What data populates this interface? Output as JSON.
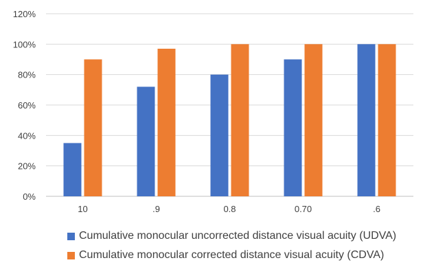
{
  "chart_data": {
    "type": "bar",
    "categories": [
      "10",
      ".9",
      "0.8",
      "0.70",
      ".6"
    ],
    "series": [
      {
        "name": "Cumulative monocular uncorrected distance visual acuity (UDVA)",
        "values": [
          35,
          72,
          80,
          90,
          100
        ],
        "color": "#4472C4"
      },
      {
        "name": "Cumulative monocular corrected distance visual acuity (CDVA)",
        "values": [
          90,
          97,
          100,
          100,
          100
        ],
        "color": "#ED7D31"
      }
    ],
    "y_ticks": [
      "0%",
      "20%",
      "40%",
      "60%",
      "80%",
      "100%",
      "120%"
    ],
    "ylim": [
      0,
      120
    ],
    "grid": true,
    "legend_position": "bottom",
    "title": "",
    "xlabel": "",
    "ylabel": ""
  }
}
